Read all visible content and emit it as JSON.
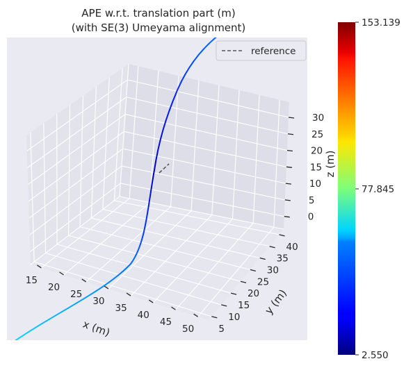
{
  "chart_data": {
    "type": "line3d",
    "title_line1": "APE w.r.t. translation part (m)",
    "title_line2": "(with SE(3) Umeyama alignment)",
    "xlabel": "x (m)",
    "ylabel": "y (m)",
    "zlabel": "z (m)",
    "x_ticks": [
      "15",
      "20",
      "25",
      "30",
      "35",
      "40",
      "45",
      "50"
    ],
    "y_ticks": [
      "5",
      "10",
      "15",
      "20",
      "25",
      "30",
      "35",
      "40"
    ],
    "z_ticks": [
      "0",
      "5",
      "10",
      "15",
      "20",
      "25",
      "30"
    ],
    "legend": {
      "label": "reference",
      "placement": "top-right",
      "line_style": "dashed",
      "color": "#555555"
    },
    "colorbar": {
      "colormap": "jet",
      "min": 2.55,
      "max": 153.139,
      "tick_labels": [
        "153.139",
        "77.845",
        "2.550"
      ]
    },
    "grid": true,
    "pane_color": "#e6e6ef"
  }
}
